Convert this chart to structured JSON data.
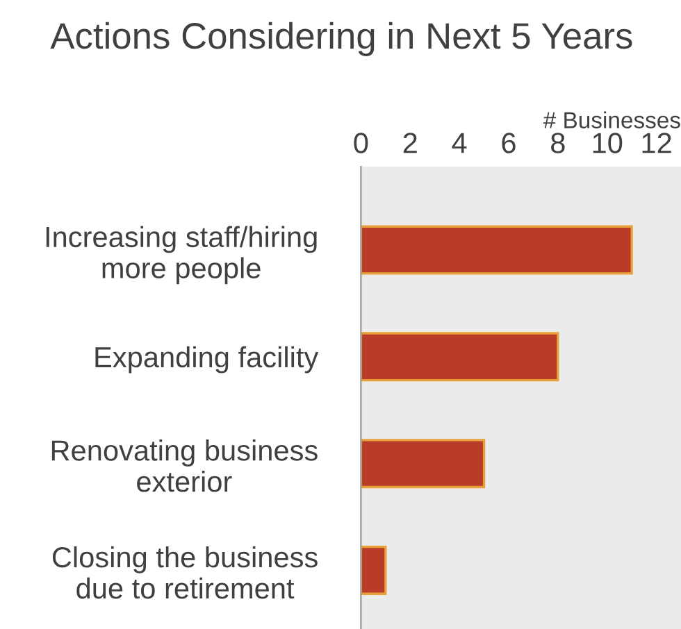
{
  "chart_data": {
    "type": "bar",
    "orientation": "horizontal",
    "title": "Actions Considering in Next 5 Years",
    "xlabel": "# Businesses",
    "categories": [
      "Increasing staff/hiring more people",
      "Expanding facility",
      "Renovating business exterior",
      "Closing the business due to retirement"
    ],
    "values": [
      11,
      8,
      5,
      1
    ],
    "color": "#b83c27",
    "xlim": [
      0,
      13
    ],
    "xticks": [
      0,
      2,
      4,
      6,
      8,
      10,
      12
    ],
    "grid": false,
    "legend": false
  }
}
